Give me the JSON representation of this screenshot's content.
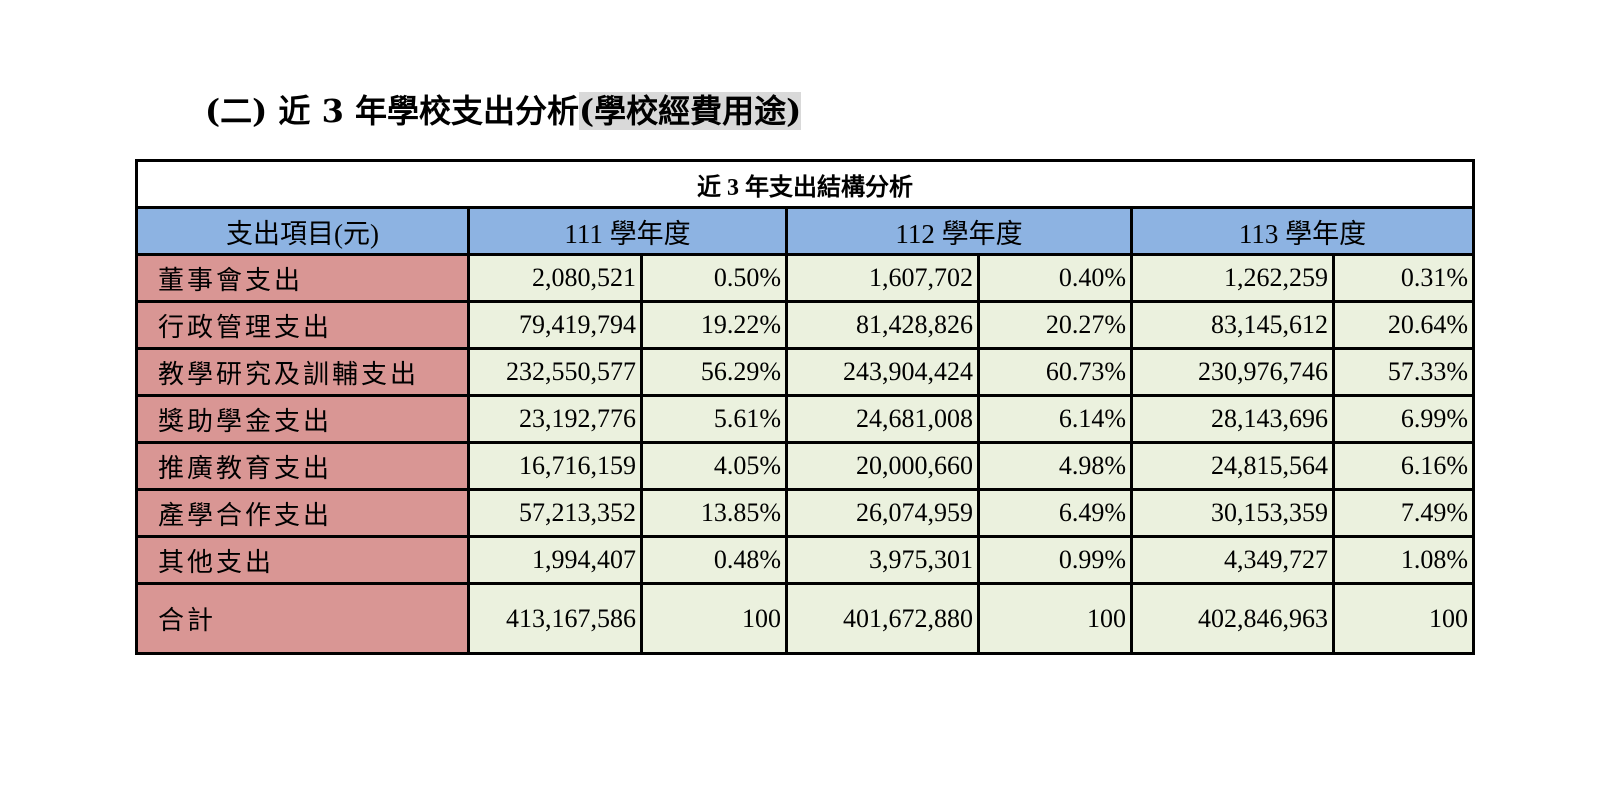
{
  "heading": {
    "main": "(二) 近 3 年學校支出分析",
    "highlight": "(學校經費用途)"
  },
  "table": {
    "caption": "近 3 年支出結構分析",
    "headers": [
      "支出項目(元)",
      "111 學年度",
      "112 學年度",
      "113 學年度"
    ],
    "rows": [
      {
        "label": "董事會支出",
        "v": [
          "2,080,521",
          "0.50%",
          "1,607,702",
          "0.40%",
          "1,262,259",
          "0.31%"
        ]
      },
      {
        "label": "行政管理支出",
        "v": [
          "79,419,794",
          "19.22%",
          "81,428,826",
          "20.27%",
          "83,145,612",
          "20.64%"
        ]
      },
      {
        "label": "教學研究及訓輔支出",
        "v": [
          "232,550,577",
          "56.29%",
          "243,904,424",
          "60.73%",
          "230,976,746",
          "57.33%"
        ]
      },
      {
        "label": "獎助學金支出",
        "v": [
          "23,192,776",
          "5.61%",
          "24,681,008",
          "6.14%",
          "28,143,696",
          "6.99%"
        ]
      },
      {
        "label": "推廣教育支出",
        "v": [
          "16,716,159",
          "4.05%",
          "20,000,660",
          "4.98%",
          "24,815,564",
          "6.16%"
        ]
      },
      {
        "label": "產學合作支出",
        "v": [
          "57,213,352",
          "13.85%",
          "26,074,959",
          "6.49%",
          "30,153,359",
          "7.49%"
        ]
      },
      {
        "label": "其他支出",
        "v": [
          "1,994,407",
          "0.48%",
          "3,975,301",
          "0.99%",
          "4,349,727",
          "1.08%"
        ]
      },
      {
        "label": "合計",
        "v": [
          "413,167,586",
          "100",
          "401,672,880",
          "100",
          "402,846,963",
          "100"
        ]
      }
    ]
  },
  "colors": {
    "header": "#8db3e2",
    "label": "#d99694",
    "cell": "#ebf1de",
    "highlight": "#d9d9d9"
  }
}
